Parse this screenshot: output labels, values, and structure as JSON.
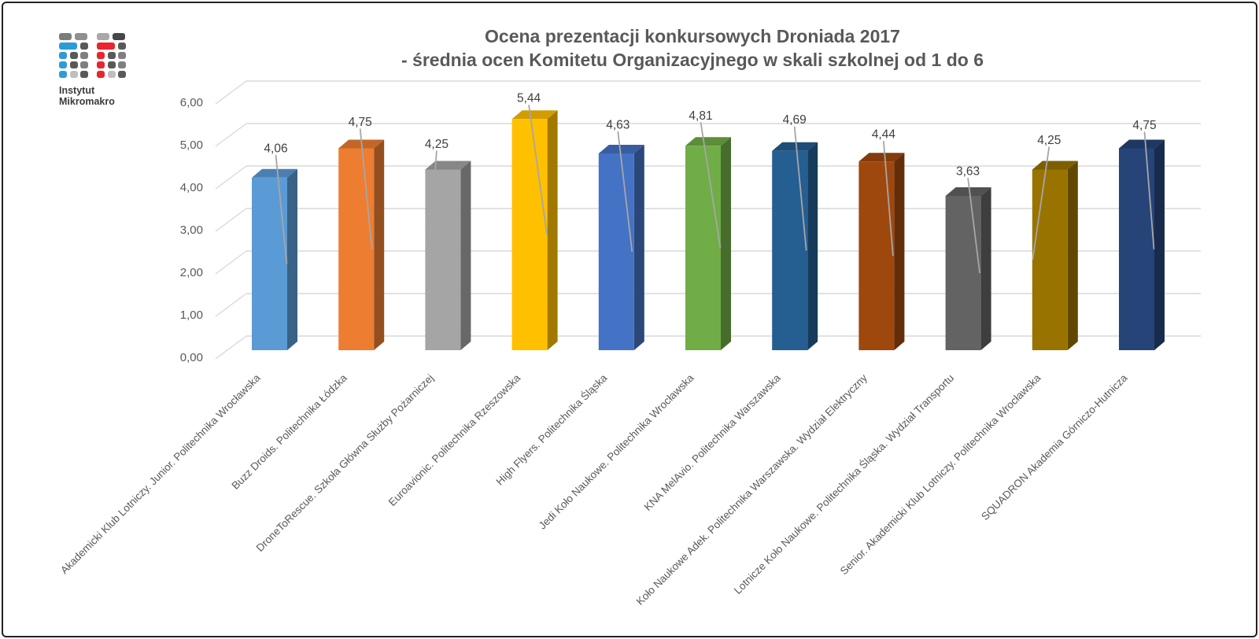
{
  "logo": {
    "line1": "Instytut",
    "line2": "Mikromakro",
    "accent_blue": "#2E9BD9",
    "accent_red": "#E8262D"
  },
  "title": {
    "line1": "Ocena prezentacji konkursowych Droniada 2017",
    "line2": "- średnia ocen Komitetu Organizacyjnego w skali szkolnej od 1 do 6"
  },
  "chart_data": {
    "type": "bar",
    "style": "3d-column",
    "title": "Ocena prezentacji konkursowych Droniada 2017 - średnia ocen Komitetu Organizacyjnego w skali szkolnej od 1 do 6",
    "categories": [
      "Akademicki Klub Lotniczy. Junior. Politechnika Wrocławska",
      "Buzz Droids. Politechnika Łódzka",
      "DroneToRescue. Szkoła Główna Służby Pożarniczej",
      "Euroavionic. Politechnika Rzeszowska",
      "High Flyers. Politechnika Śląska",
      "Jedi Koło Naukowe. Politechnika Wrocławska",
      "KNA MelAvio. Politechnika Warszawska",
      "Koło Naukowe Adek. Politechnika Warszawska. Wydział Elektryczny",
      "Lotnicze Koło Naukowe. Politechnika Śląska. Wydział Transportu",
      "Senior. Akademicki Klub Lotniczy. Politechnika Wrocławska",
      "SQUADRON Akademia Górniczo-Hutnicza"
    ],
    "values": [
      4.06,
      4.75,
      4.25,
      5.44,
      4.63,
      4.81,
      4.69,
      4.44,
      3.63,
      4.25,
      4.75
    ],
    "value_labels": [
      "4,06",
      "4,75",
      "4,25",
      "5,44",
      "4,63",
      "4,81",
      "4,69",
      "4,44",
      "3,63",
      "4,25",
      "4,75"
    ],
    "point_colors": [
      "#5B9BD5",
      "#ED7D31",
      "#A5A5A5",
      "#FFC000",
      "#4472C4",
      "#70AD47",
      "#255E91",
      "#9E480E",
      "#636363",
      "#997300",
      "#264478"
    ],
    "y_ticks": [
      "0,00",
      "1,00",
      "2,00",
      "3,00",
      "4,00",
      "5,00",
      "6,00"
    ],
    "ylim": [
      0,
      6
    ],
    "xlabel": "",
    "ylabel": "",
    "grid": true,
    "legend": "none",
    "gridline_color": "#D9D9D9",
    "leader_line_color": "#A6A6A6",
    "axis_text_color": "#595959",
    "value_label_color": "#404040"
  }
}
